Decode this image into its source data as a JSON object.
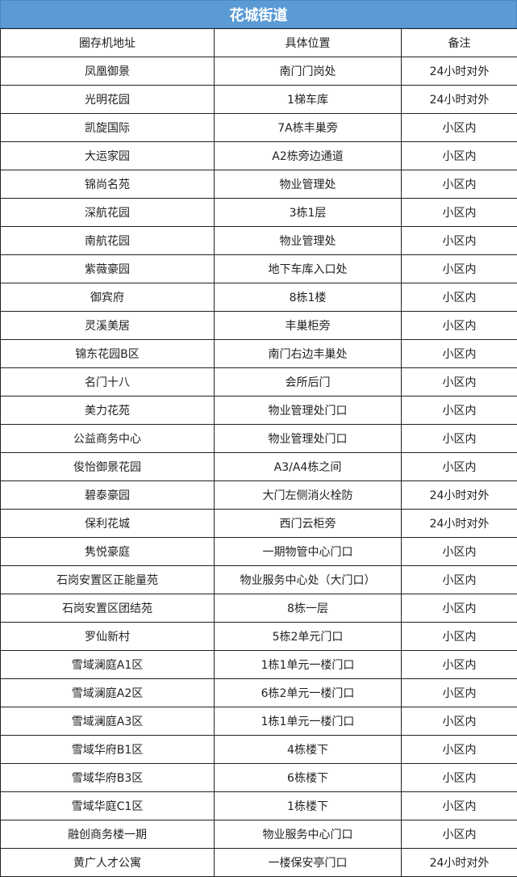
{
  "title": "花城街道",
  "header": [
    "圈存机地址",
    "具体位置",
    "备注"
  ],
  "rows": [
    [
      "凤凰御景",
      "南门门岗处",
      "24小时对外"
    ],
    [
      "光明花园",
      "1梯车库",
      "24小时对外"
    ],
    [
      "凯旋国际",
      "7A栋丰巢旁",
      "小区内"
    ],
    [
      "大运家园",
      "A2栋旁边通道",
      "小区内"
    ],
    [
      "锦尚名苑",
      "物业管理处",
      "小区内"
    ],
    [
      "深航花园",
      "3栋1层",
      "小区内"
    ],
    [
      "南航花园",
      "物业管理处",
      "小区内"
    ],
    [
      "紫薇豪园",
      "地下车库入口处",
      "小区内"
    ],
    [
      "御宾府",
      "8栋1楼",
      "小区内"
    ],
    [
      "灵溪美居",
      "丰巢柜旁",
      "小区内"
    ],
    [
      "锦东花园B区",
      "南门右边丰巢处",
      "小区内"
    ],
    [
      "名门十八",
      "会所后门",
      "小区内"
    ],
    [
      "美力花苑",
      "物业管理处门口",
      "小区内"
    ],
    [
      "公益商务中心",
      "物业管理处门口",
      "小区内"
    ],
    [
      "俊怡御景花园",
      "A3/A4栋之间",
      "小区内"
    ],
    [
      "碧泰豪园",
      "大门左侧消火栓防",
      "24小时对外"
    ],
    [
      "保利花城",
      "西门云柜旁",
      "24小时对外"
    ],
    [
      "隽悦豪庭",
      "一期物管中心门口",
      "小区内"
    ],
    [
      "石岗安置区正能量苑",
      "物业服务中心处（大门口）",
      "小区内"
    ],
    [
      "石岗安置区团结苑",
      "8栋一层",
      "小区内"
    ],
    [
      "罗仙新村",
      "5栋2单元门口",
      "小区内"
    ],
    [
      "雪域澜庭A1区",
      "1栋1单元一楼门口",
      "小区内"
    ],
    [
      "雪域澜庭A2区",
      "6栋2单元一楼门口",
      "小区内"
    ],
    [
      "雪域澜庭A3区",
      "1栋1单元一楼门口",
      "小区内"
    ],
    [
      "雪域华府B1区",
      "4栋楼下",
      "小区内"
    ],
    [
      "雪域华府B3区",
      "6栋楼下",
      "小区内"
    ],
    [
      "雪域华庭C1区",
      "1栋楼下",
      "小区内"
    ],
    [
      "融创商务楼一期",
      "物业服务中心门口",
      "小区内"
    ],
    [
      "黄广人才公寓",
      "一楼保安亭门口",
      "24小时对外"
    ]
  ],
  "colors": {
    "title_bg": "#5b9bd5"
  }
}
